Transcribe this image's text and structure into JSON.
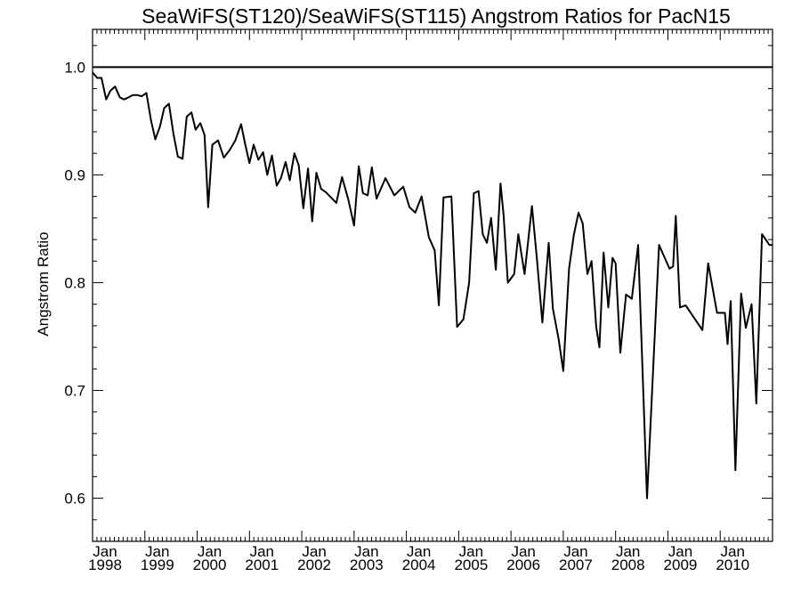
{
  "chart_data": {
    "type": "line",
    "title": "SeaWiFS(ST120)/SeaWiFS(ST115)  Angstrom Ratios for PacN15",
    "xlabel": "",
    "ylabel": "Angstrom Ratio",
    "xlim": [
      1998.0,
      2011.0
    ],
    "ylim": [
      0.56,
      1.035
    ],
    "x_ticks": [
      {
        "value": 1998,
        "month": "Jan",
        "year": "1998"
      },
      {
        "value": 1999,
        "month": "Jan",
        "year": "1999"
      },
      {
        "value": 2000,
        "month": "Jan",
        "year": "2000"
      },
      {
        "value": 2001,
        "month": "Jan",
        "year": "2001"
      },
      {
        "value": 2002,
        "month": "Jan",
        "year": "2002"
      },
      {
        "value": 2003,
        "month": "Jan",
        "year": "2003"
      },
      {
        "value": 2004,
        "month": "Jan",
        "year": "2004"
      },
      {
        "value": 2005,
        "month": "Jan",
        "year": "2005"
      },
      {
        "value": 2006,
        "month": "Jan",
        "year": "2006"
      },
      {
        "value": 2007,
        "month": "Jan",
        "year": "2007"
      },
      {
        "value": 2008,
        "month": "Jan",
        "year": "2008"
      },
      {
        "value": 2009,
        "month": "Jan",
        "year": "2009"
      },
      {
        "value": 2010,
        "month": "Jan",
        "year": "2010"
      }
    ],
    "y_ticks": [
      {
        "value": 0.6,
        "label": "0.6"
      },
      {
        "value": 0.7,
        "label": "0.7"
      },
      {
        "value": 0.8,
        "label": "0.8"
      },
      {
        "value": 0.9,
        "label": "0.9"
      },
      {
        "value": 1.0,
        "label": "1.0"
      }
    ],
    "reference_line": {
      "y": 1.0
    },
    "grid": false,
    "line_color": "#000000",
    "series": [
      {
        "x": [
          1998.0,
          1998.09,
          1998.17,
          1998.26,
          1998.34,
          1998.43,
          1998.52,
          1998.6,
          1998.69,
          1998.77,
          1998.86,
          1998.94,
          1999.03,
          1999.12,
          1999.2,
          1999.29,
          1999.37,
          1999.46,
          1999.55,
          1999.63,
          1999.72,
          1999.8,
          1999.89,
          1999.97,
          2000.06,
          2000.14,
          2000.21,
          2000.29,
          2000.4,
          2000.51,
          2000.62,
          2000.73,
          2000.84,
          2000.92,
          2001.0,
          2001.08,
          2001.17,
          2001.26,
          2001.34,
          2001.43,
          2001.52,
          2001.6,
          2001.69,
          2001.77,
          2001.86,
          2001.94,
          2002.03,
          2002.12,
          2002.2,
          2002.28,
          2002.37,
          2002.46,
          2002.66,
          2002.77,
          2002.89,
          2003.0,
          2003.09,
          2003.17,
          2003.26,
          2003.34,
          2003.43,
          2003.6,
          2003.77,
          2003.94,
          2004.06,
          2004.17,
          2004.29,
          2004.43,
          2004.54,
          2004.62,
          2004.71,
          2004.86,
          2004.97,
          2005.09,
          2005.2,
          2005.29,
          2005.38,
          2005.46,
          2005.54,
          2005.62,
          2005.71,
          2005.8,
          2005.86,
          2005.94,
          2006.06,
          2006.14,
          2006.26,
          2006.4,
          2006.5,
          2006.6,
          2006.72,
          2006.8,
          2006.91,
          2007.0,
          2007.11,
          2007.2,
          2007.29,
          2007.37,
          2007.46,
          2007.54,
          2007.63,
          2007.69,
          2007.77,
          2007.86,
          2007.94,
          2008.0,
          2008.09,
          2008.2,
          2008.31,
          2008.43,
          2008.6,
          2008.83,
          2008.94,
          2009.03,
          2009.1,
          2009.15,
          2009.23,
          2009.34,
          2009.66,
          2009.77,
          2009.94,
          2010.0,
          2010.09,
          2010.14,
          2010.2,
          2010.29,
          2010.4,
          2010.49,
          2010.6,
          2010.69,
          2010.8,
          2010.94,
          2011.0
        ],
        "values": [
          0.995,
          0.99,
          0.99,
          0.97,
          0.978,
          0.982,
          0.972,
          0.97,
          0.972,
          0.974,
          0.974,
          0.973,
          0.976,
          0.95,
          0.933,
          0.945,
          0.962,
          0.966,
          0.937,
          0.917,
          0.915,
          0.954,
          0.958,
          0.942,
          0.948,
          0.937,
          0.87,
          0.928,
          0.932,
          0.916,
          0.923,
          0.932,
          0.947,
          0.928,
          0.911,
          0.928,
          0.914,
          0.921,
          0.9,
          0.918,
          0.89,
          0.897,
          0.912,
          0.895,
          0.92,
          0.909,
          0.869,
          0.906,
          0.857,
          0.902,
          0.887,
          0.884,
          0.874,
          0.898,
          0.877,
          0.853,
          0.908,
          0.883,
          0.881,
          0.907,
          0.878,
          0.897,
          0.881,
          0.889,
          0.87,
          0.865,
          0.88,
          0.842,
          0.83,
          0.779,
          0.879,
          0.88,
          0.759,
          0.766,
          0.8,
          0.883,
          0.885,
          0.845,
          0.837,
          0.86,
          0.812,
          0.892,
          0.862,
          0.8,
          0.808,
          0.845,
          0.808,
          0.871,
          0.82,
          0.763,
          0.837,
          0.776,
          0.748,
          0.718,
          0.813,
          0.844,
          0.865,
          0.855,
          0.808,
          0.82,
          0.759,
          0.74,
          0.828,
          0.777,
          0.823,
          0.818,
          0.735,
          0.789,
          0.785,
          0.835,
          0.6,
          0.835,
          0.823,
          0.813,
          0.815,
          0.862,
          0.777,
          0.779,
          0.756,
          0.818,
          0.772,
          0.772,
          0.772,
          0.743,
          0.783,
          0.626,
          0.79,
          0.758,
          0.78,
          0.688,
          0.845,
          0.835,
          0.835
        ]
      }
    ]
  }
}
